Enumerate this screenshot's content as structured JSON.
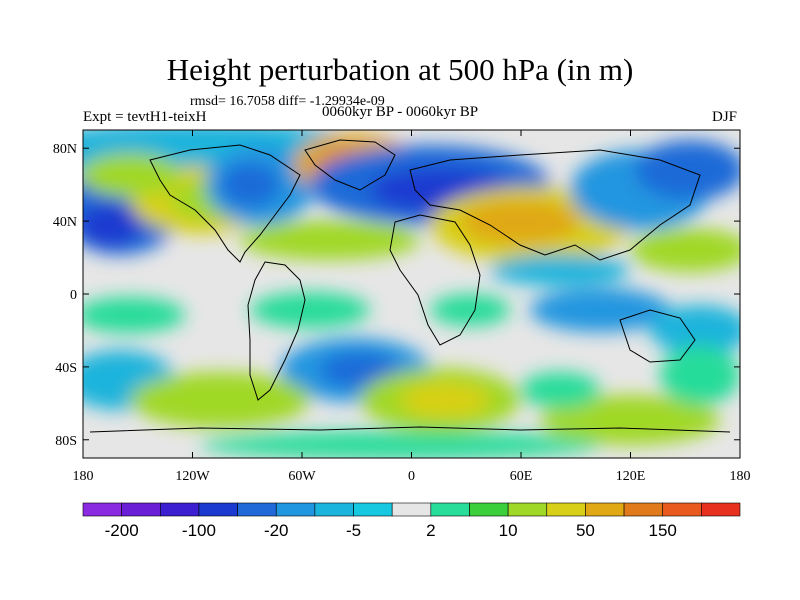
{
  "title": "Height perturbation at 500 hPa (in m)",
  "stats": "rmsd= 16.7058 diff= -1.29934e-09",
  "experiment": "Expt = tevtH1-teixH",
  "period": "0060kyr BP - 0060kyr BP",
  "season": "DJF",
  "lat_labels": [
    "80N",
    "40N",
    "0",
    "40S",
    "80S"
  ],
  "lat_values": [
    80,
    40,
    0,
    -40,
    -80
  ],
  "lon_labels": [
    "180",
    "120W",
    "60W",
    "0",
    "60E",
    "120E",
    "180"
  ],
  "lon_values": [
    -180,
    -120,
    -60,
    0,
    60,
    120,
    180
  ],
  "colorbar": {
    "colors": [
      "#8a2be2",
      "#6a1fd6",
      "#3c1fd0",
      "#1a3ad0",
      "#1f6ad8",
      "#2196e0",
      "#1ab4dc",
      "#16c8e0",
      "#e6e6e6",
      "#28dc9a",
      "#3ccf3c",
      "#a0d828",
      "#d8d018",
      "#e0a814",
      "#e07a1a",
      "#e85a1e",
      "#e8301e"
    ],
    "labels": [
      "-200",
      "-100",
      "-20",
      "-5",
      "2",
      "10",
      "50",
      "150"
    ],
    "label_positions": [
      1,
      3,
      5,
      7,
      9,
      11,
      13,
      15
    ]
  },
  "chart_data": {
    "type": "filled-contour-map",
    "variable": "Height perturbation at 500 hPa",
    "units": "m",
    "xrange": [
      -180,
      180
    ],
    "yrange": [
      -90,
      90
    ],
    "contour_levels": [
      -200,
      -100,
      -20,
      -5,
      2,
      10,
      50,
      150
    ],
    "anomaly_centers": [
      {
        "lon": -178,
        "lat": 35,
        "value": -90
      },
      {
        "lon": -125,
        "lat": 52,
        "value": -60
      },
      {
        "lon": -140,
        "lat": 34,
        "value": 30
      },
      {
        "lon": -45,
        "lat": 68,
        "value": 80
      },
      {
        "lon": 0,
        "lat": 60,
        "value": -70
      },
      {
        "lon": 55,
        "lat": 42,
        "value": 45
      },
      {
        "lon": 130,
        "lat": 48,
        "value": -40
      },
      {
        "lon": 165,
        "lat": 58,
        "value": -35
      },
      {
        "lon": -30,
        "lat": -45,
        "value": -90
      },
      {
        "lon": 15,
        "lat": -58,
        "value": 40
      },
      {
        "lon": -135,
        "lat": -58,
        "value": 25
      },
      {
        "lon": 80,
        "lat": -10,
        "value": -30
      },
      {
        "lon": 160,
        "lat": -12,
        "value": -25
      }
    ]
  }
}
